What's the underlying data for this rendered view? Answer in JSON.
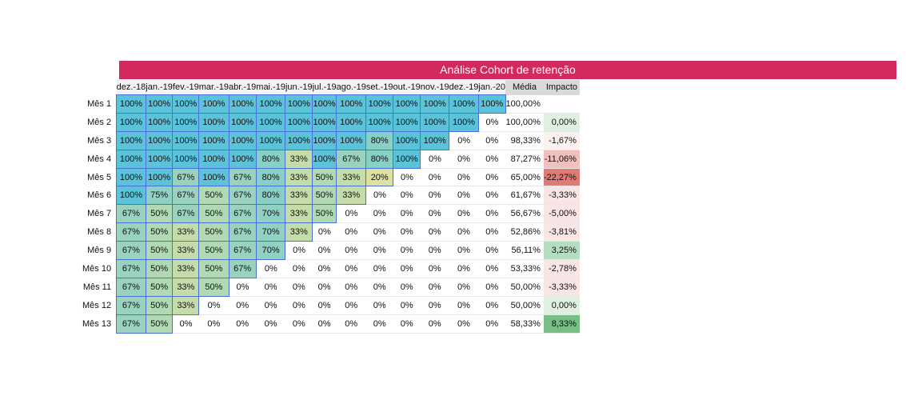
{
  "title": "Análise Cohort de retenção",
  "columns": [
    "dez.-18",
    "jan.-19",
    "fev.-19",
    "mar.-19",
    "abr.-19",
    "mai.-19",
    "jun.-19",
    "jul.-19",
    "ago.-19",
    "set.-19",
    "out.-19",
    "nov.-19",
    "dez.-19",
    "jan.-20"
  ],
  "avg_header": "Média",
  "impact_header": "Impacto",
  "rows": [
    {
      "label": "Mês 1",
      "values": [
        "100%",
        "100%",
        "100%",
        "100%",
        "100%",
        "100%",
        "100%",
        "100%",
        "100%",
        "100%",
        "100%",
        "100%",
        "100%",
        "100%"
      ],
      "avg": "100,00%",
      "impact": ""
    },
    {
      "label": "Mês 2",
      "values": [
        "100%",
        "100%",
        "100%",
        "100%",
        "100%",
        "100%",
        "100%",
        "100%",
        "100%",
        "100%",
        "100%",
        "100%",
        "100%",
        "0%"
      ],
      "avg": "100,00%",
      "impact": "0,00%"
    },
    {
      "label": "Mês 3",
      "values": [
        "100%",
        "100%",
        "100%",
        "100%",
        "100%",
        "100%",
        "100%",
        "100%",
        "100%",
        "80%",
        "100%",
        "100%",
        "0%",
        "0%"
      ],
      "avg": "98,33%",
      "impact": "-1,67%"
    },
    {
      "label": "Mês 4",
      "values": [
        "100%",
        "100%",
        "100%",
        "100%",
        "100%",
        "80%",
        "33%",
        "100%",
        "67%",
        "80%",
        "100%",
        "0%",
        "0%",
        "0%"
      ],
      "avg": "87,27%",
      "impact": "-11,06%"
    },
    {
      "label": "Mês 5",
      "values": [
        "100%",
        "100%",
        "67%",
        "100%",
        "67%",
        "80%",
        "33%",
        "50%",
        "33%",
        "20%",
        "0%",
        "0%",
        "0%",
        "0%"
      ],
      "avg": "65,00%",
      "impact": "-22,27%"
    },
    {
      "label": "Mês 6",
      "values": [
        "100%",
        "75%",
        "67%",
        "50%",
        "67%",
        "80%",
        "33%",
        "50%",
        "33%",
        "0%",
        "0%",
        "0%",
        "0%",
        "0%"
      ],
      "avg": "61,67%",
      "impact": "-3,33%"
    },
    {
      "label": "Mês 7",
      "values": [
        "67%",
        "50%",
        "67%",
        "50%",
        "67%",
        "70%",
        "33%",
        "50%",
        "0%",
        "0%",
        "0%",
        "0%",
        "0%",
        "0%"
      ],
      "avg": "56,67%",
      "impact": "-5,00%"
    },
    {
      "label": "Mês 8",
      "values": [
        "67%",
        "50%",
        "33%",
        "50%",
        "67%",
        "70%",
        "33%",
        "0%",
        "0%",
        "0%",
        "0%",
        "0%",
        "0%",
        "0%"
      ],
      "avg": "52,86%",
      "impact": "-3,81%"
    },
    {
      "label": "Mês 9",
      "values": [
        "67%",
        "50%",
        "33%",
        "50%",
        "67%",
        "70%",
        "0%",
        "0%",
        "0%",
        "0%",
        "0%",
        "0%",
        "0%",
        "0%"
      ],
      "avg": "56,11%",
      "impact": "3,25%"
    },
    {
      "label": "Mês 10",
      "values": [
        "67%",
        "50%",
        "33%",
        "50%",
        "67%",
        "0%",
        "0%",
        "0%",
        "0%",
        "0%",
        "0%",
        "0%",
        "0%",
        "0%"
      ],
      "avg": "53,33%",
      "impact": "-2,78%"
    },
    {
      "label": "Mês 11",
      "values": [
        "67%",
        "50%",
        "33%",
        "50%",
        "0%",
        "0%",
        "0%",
        "0%",
        "0%",
        "0%",
        "0%",
        "0%",
        "0%",
        "0%"
      ],
      "avg": "50,00%",
      "impact": "-3,33%"
    },
    {
      "label": "Mês 12",
      "values": [
        "67%",
        "50%",
        "33%",
        "0%",
        "0%",
        "0%",
        "0%",
        "0%",
        "0%",
        "0%",
        "0%",
        "0%",
        "0%",
        "0%"
      ],
      "avg": "50,00%",
      "impact": "0,00%"
    },
    {
      "label": "Mês 13",
      "values": [
        "67%",
        "50%",
        "0%",
        "0%",
        "0%",
        "0%",
        "0%",
        "0%",
        "0%",
        "0%",
        "0%",
        "0%",
        "0%",
        "0%"
      ],
      "avg": "58,33%",
      "impact": "8,33%"
    }
  ],
  "colors": {
    "title_bg": "#d22a5e",
    "c100": "#5bc3d9",
    "c80": "#87d0c8",
    "c75": "#8fd2c4",
    "c70": "#91d1c3",
    "c67": "#99d3c0",
    "c50": "#b0d9b4",
    "c33": "#c3dca9",
    "c20": "#dde2a1",
    "impact_neg_strong": "#e07a74",
    "impact_neg_mid": "#efc0bd",
    "impact_neg_light": "#f7e6e5",
    "impact_neutral": "#dff0e1",
    "impact_pos_mid": "#b5dec0",
    "impact_pos_strong": "#77bf86"
  }
}
